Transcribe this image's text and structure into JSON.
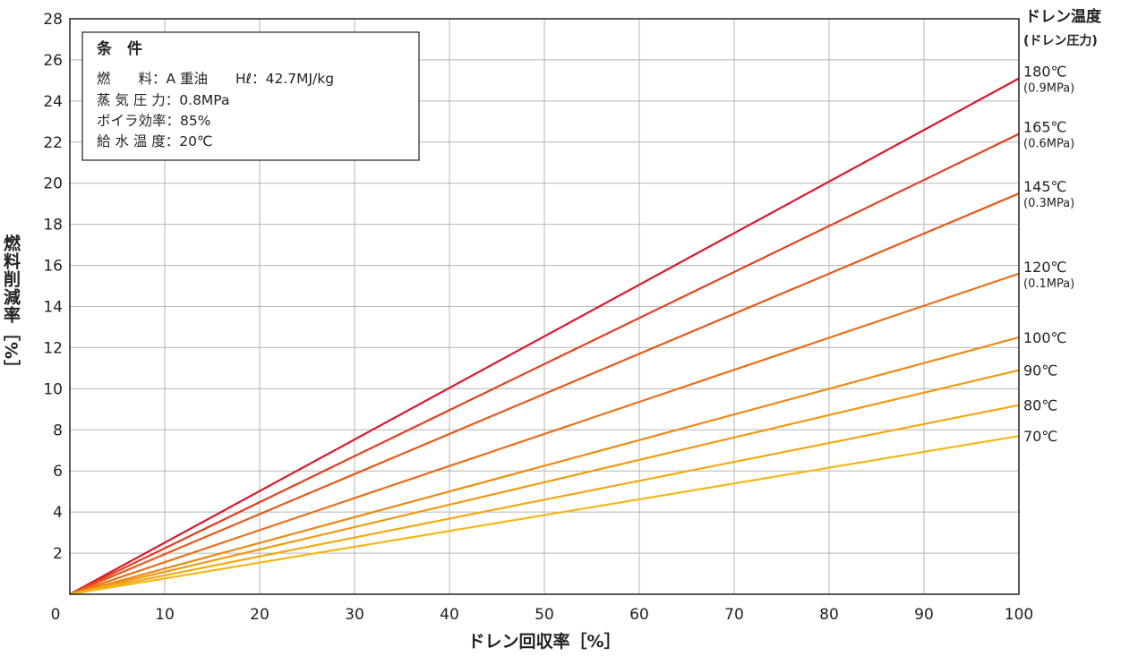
{
  "chart_data": {
    "type": "line",
    "title": "",
    "xlabel": "ドレン回収率［%］",
    "ylabel": "燃料削減率［%］",
    "xlim": [
      0,
      100
    ],
    "ylim": [
      0,
      28
    ],
    "x_ticks": [
      "0",
      "10",
      "20",
      "30",
      "40",
      "50",
      "60",
      "70",
      "80",
      "90",
      "100"
    ],
    "y_ticks": [
      "2",
      "4",
      "6",
      "8",
      "10",
      "12",
      "14",
      "16",
      "18",
      "20",
      "22",
      "24",
      "26",
      "28"
    ],
    "grid": true,
    "legend_title": "ドレン温度",
    "legend_subtitle": "(ドレン圧力)",
    "conditions": {
      "title": "条　件",
      "lines": [
        "燃　　料：A 重油　　Hℓ：42.7MJ/kg",
        "蒸 気 圧 力：0.8MPa",
        "ボイラ効率：85%",
        "給 水 温 度：20℃"
      ]
    },
    "series": [
      {
        "name": "180℃",
        "pressure": "(0.9MPa)",
        "color": "#d7192f",
        "x": [
          0,
          100
        ],
        "y": [
          0,
          25.1
        ]
      },
      {
        "name": "165℃",
        "pressure": "(0.6MPa)",
        "color": "#e0401f",
        "x": [
          0,
          100
        ],
        "y": [
          0,
          22.4
        ]
      },
      {
        "name": "145℃",
        "pressure": "(0.3MPa)",
        "color": "#e4581a",
        "x": [
          0,
          100
        ],
        "y": [
          0,
          19.5
        ]
      },
      {
        "name": "120℃",
        "pressure": "(0.1MPa)",
        "color": "#e8701a",
        "x": [
          0,
          100
        ],
        "y": [
          0,
          15.6
        ]
      },
      {
        "name": "100℃",
        "pressure": "",
        "color": "#ec8a14",
        "x": [
          0,
          100
        ],
        "y": [
          0,
          12.5
        ]
      },
      {
        "name": "90℃",
        "pressure": "",
        "color": "#ef9a12",
        "x": [
          0,
          100
        ],
        "y": [
          0,
          10.9
        ]
      },
      {
        "name": "80℃",
        "pressure": "",
        "color": "#f2aa12",
        "x": [
          0,
          100
        ],
        "y": [
          0,
          9.2
        ]
      },
      {
        "name": "70℃",
        "pressure": "",
        "color": "#f5b81a",
        "x": [
          0,
          100
        ],
        "y": [
          0,
          7.7
        ]
      }
    ]
  }
}
